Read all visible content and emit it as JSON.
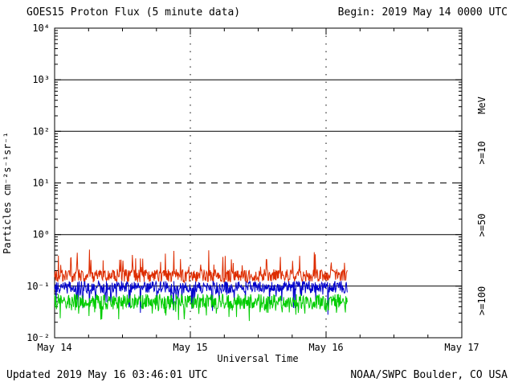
{
  "title": "GOES15 Proton Flux (5 minute data)",
  "header": {
    "begin_label": "Begin: 2019 May 14 0000 UTC"
  },
  "footer": {
    "updated_label": "Updated 2019 May 16 03:46:01 UTC",
    "credit_label": "NOAA/SWPC Boulder, CO USA"
  },
  "chart_data": {
    "type": "line",
    "title": "GOES15 Proton Flux (5 minute data)",
    "xlabel": "Universal Time",
    "ylabel": "Particles cm⁻²s⁻¹sr⁻¹",
    "right_axis_title": "MeV",
    "x_ticks": [
      "May 14",
      "May 15",
      "May 16",
      "May 17"
    ],
    "x_range_days": [
      0,
      3
    ],
    "data_end_day": 2.156,
    "sample_interval_minutes": 5,
    "ylog_range": [
      -2,
      4
    ],
    "y_ticks": [
      {
        "exp": -2,
        "label": "10⁻²"
      },
      {
        "exp": -1,
        "label": "10⁻¹"
      },
      {
        "exp": 0,
        "label": "10⁰"
      },
      {
        "exp": 1,
        "label": "10¹"
      },
      {
        "exp": 2,
        "label": "10²"
      },
      {
        "exp": 3,
        "label": "10³"
      },
      {
        "exp": 4,
        "label": "10⁴"
      }
    ],
    "hlines_solid": [
      1000,
      100,
      1,
      0.1
    ],
    "hlines_dashed": [
      10
    ],
    "vlines_dotted_days": [
      1,
      2
    ],
    "series": [
      {
        "name": ">=10",
        "color": "#dd2c00",
        "approx_mean_flux": 0.17,
        "flux_range": [
          0.09,
          0.5
        ],
        "log10_base": -0.8,
        "log10_noise": 0.13,
        "spike_prob": 0.07,
        "spike_dir": 1,
        "log10_spike": 0.45,
        "seed": 7
      },
      {
        "name": ">=50",
        "color": "#0000cc",
        "approx_mean_flux": 0.09,
        "flux_range": [
          0.03,
          0.14
        ],
        "log10_base": -1.02,
        "log10_noise": 0.12,
        "spike_prob": 0.1,
        "spike_dir": -1,
        "log10_spike": 0.45,
        "seed": 13
      },
      {
        "name": ">=100",
        "color": "#00cc00",
        "approx_mean_flux": 0.045,
        "flux_range": [
          0.02,
          0.09
        ],
        "log10_base": -1.3,
        "log10_noise": 0.15,
        "spike_prob": 0.1,
        "spike_dir": -1,
        "log10_spike": 0.35,
        "seed": 29
      }
    ]
  }
}
